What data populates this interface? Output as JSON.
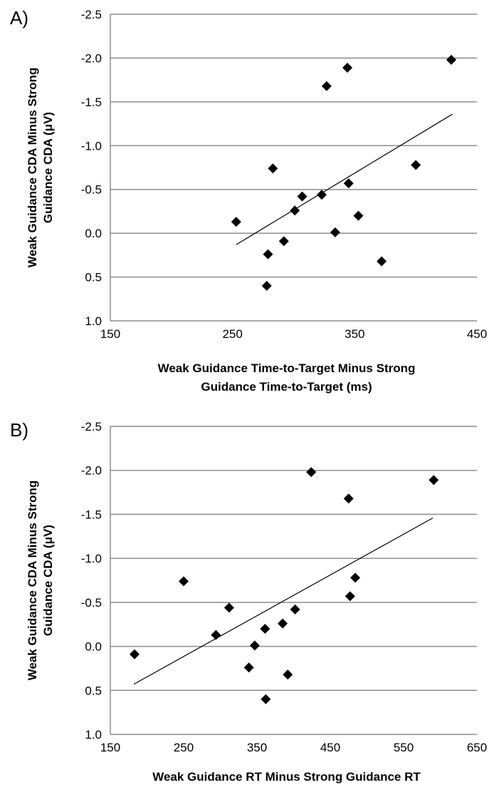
{
  "chart_data": [
    {
      "type": "scatter",
      "panel_label": "A)",
      "xlabel_lines": [
        "Weak Guidance Time-to-Target Minus Strong",
        "Guidance Time-to-Target (ms)"
      ],
      "ylabel_lines": [
        "Weak Guidance CDA Minus Strong",
        "Guidance CDA (μV)"
      ],
      "xlim": [
        150,
        450
      ],
      "ylim": [
        1.0,
        -2.5
      ],
      "y_inverted": true,
      "xticks": [
        150,
        250,
        350,
        450
      ],
      "yticks": [
        -2.5,
        -2.0,
        -1.5,
        -1.0,
        -0.5,
        0.0,
        0.5,
        1.0
      ],
      "ytick_labels": [
        "-2.5",
        "-2.0",
        "-1.5",
        "-1.0",
        "-0.5",
        "0.0",
        "0.5",
        "1.0"
      ],
      "grid": "horizontal",
      "marker": "diamond",
      "points": [
        [
          253,
          -0.13
        ],
        [
          278,
          0.6
        ],
        [
          279,
          0.24
        ],
        [
          283,
          -0.74
        ],
        [
          292,
          0.09
        ],
        [
          301,
          -0.26
        ],
        [
          307,
          -0.42
        ],
        [
          323,
          -0.44
        ],
        [
          327,
          -1.68
        ],
        [
          334,
          -0.01
        ],
        [
          344,
          -1.89
        ],
        [
          345,
          -0.57
        ],
        [
          353,
          -0.2
        ],
        [
          372,
          0.32
        ],
        [
          400,
          -0.78
        ],
        [
          429,
          -1.98
        ]
      ],
      "trendline": [
        [
          253,
          0.13
        ],
        [
          430,
          -1.36
        ]
      ]
    },
    {
      "type": "scatter",
      "panel_label": "B)",
      "xlabel_lines": [
        "Weak Guidance RT Minus Strong Guidance RT"
      ],
      "ylabel_lines": [
        "Weak Guidance CDA Minus Strong",
        "Guidance CDA (μV)"
      ],
      "xlim": [
        150,
        650
      ],
      "ylim": [
        1.0,
        -2.5
      ],
      "y_inverted": true,
      "xticks": [
        150,
        250,
        350,
        450,
        550,
        650
      ],
      "yticks": [
        -2.5,
        -2.0,
        -1.5,
        -1.0,
        -0.5,
        0.0,
        0.5,
        1.0
      ],
      "ytick_labels": [
        "-2.5",
        "-2.0",
        "-1.5",
        "-1.0",
        "-0.5",
        "0.0",
        "0.5",
        "1.0"
      ],
      "grid": "horizontal",
      "marker": "diamond",
      "points": [
        [
          183,
          0.09
        ],
        [
          250,
          -0.74
        ],
        [
          294,
          -0.13
        ],
        [
          312,
          -0.44
        ],
        [
          339,
          0.24
        ],
        [
          347,
          -0.01
        ],
        [
          361,
          -0.2
        ],
        [
          362,
          0.6
        ],
        [
          385,
          -0.26
        ],
        [
          392,
          0.32
        ],
        [
          402,
          -0.42
        ],
        [
          424,
          -1.98
        ],
        [
          475,
          -1.68
        ],
        [
          477,
          -0.57
        ],
        [
          484,
          -0.78
        ],
        [
          591,
          -1.89
        ]
      ],
      "trendline": [
        [
          182,
          0.43
        ],
        [
          590,
          -1.46
        ]
      ]
    }
  ]
}
